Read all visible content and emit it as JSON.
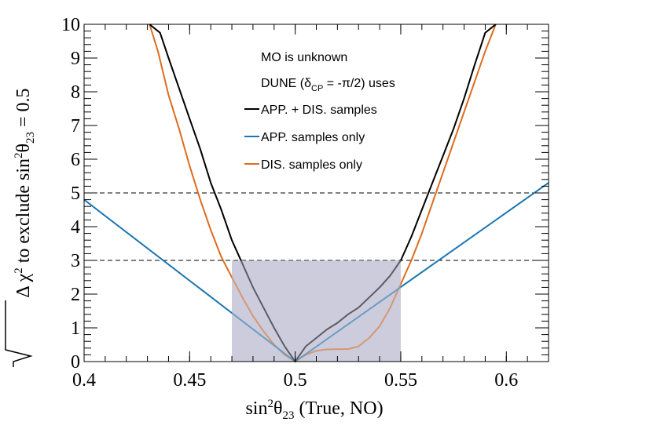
{
  "chart_data": {
    "type": "line",
    "title": "",
    "xlabel": {
      "base": "sin",
      "sup": "2",
      "theta": "θ",
      "sub": "23",
      "rest": " (True, NO)"
    },
    "ylabel": {
      "delta": "Δ χ",
      "sup": "2",
      "text": " to exclude sin",
      "sup2": "2",
      "theta": "θ",
      "sub": "23",
      "tail": " = 0.5"
    },
    "xlim": [
      0.4,
      0.62
    ],
    "ylim": [
      0,
      10
    ],
    "xticks": [
      0.4,
      0.45,
      0.5,
      0.55,
      0.6
    ],
    "xtick_labels": [
      "0.4",
      "0.45",
      "0.5",
      "0.55",
      "0.6"
    ],
    "yticks": [
      0,
      1,
      2,
      3,
      4,
      5,
      6,
      7,
      8,
      9,
      10
    ],
    "ytick_labels": [
      "0",
      "1",
      "2",
      "3",
      "4",
      "5",
      "6",
      "7",
      "8",
      "9",
      "10"
    ],
    "hlines": [
      3,
      5
    ],
    "shaded_region": {
      "x": [
        0.47,
        0.55
      ],
      "y": [
        0,
        3
      ],
      "color": "#cccddc"
    },
    "annotations": [
      {
        "text": "MO is unknown"
      },
      {
        "text_pre": "DUNE (δ",
        "sub": "CP",
        "text_post": " = -π/2) uses"
      }
    ],
    "series": [
      {
        "name": "APP. + DIS. samples",
        "color": "#000000",
        "x": [
          0.431,
          0.433,
          0.436,
          0.44,
          0.445,
          0.45,
          0.455,
          0.46,
          0.465,
          0.47,
          0.475,
          0.48,
          0.485,
          0.49,
          0.495,
          0.5,
          0.505,
          0.51,
          0.515,
          0.52,
          0.525,
          0.53,
          0.535,
          0.54,
          0.545,
          0.55,
          0.555,
          0.56,
          0.565,
          0.57,
          0.575,
          0.58,
          0.585,
          0.59,
          0.595
        ],
        "y": [
          10,
          9.9,
          9.75,
          9.0,
          8.1,
          7.2,
          6.3,
          5.3,
          4.5,
          3.6,
          2.9,
          2.2,
          1.6,
          1.0,
          0.45,
          0.0,
          0.45,
          0.7,
          0.95,
          1.15,
          1.4,
          1.6,
          1.9,
          2.2,
          2.55,
          3.0,
          3.7,
          4.5,
          5.3,
          6.1,
          6.9,
          7.8,
          8.8,
          9.75,
          10
        ]
      },
      {
        "name": "APP. samples only",
        "color": "#1a75b0",
        "x": [
          0.4,
          0.5,
          0.62
        ],
        "y": [
          4.8,
          0.0,
          5.3
        ]
      },
      {
        "name": "DIS. samples only",
        "color": "#dd6c1d",
        "x": [
          0.431,
          0.435,
          0.44,
          0.445,
          0.45,
          0.455,
          0.46,
          0.465,
          0.47,
          0.475,
          0.48,
          0.485,
          0.49,
          0.495,
          0.5,
          0.505,
          0.51,
          0.515,
          0.52,
          0.525,
          0.53,
          0.535,
          0.54,
          0.545,
          0.55,
          0.555,
          0.56,
          0.565,
          0.57,
          0.575,
          0.58,
          0.585,
          0.59,
          0.595
        ],
        "y": [
          10,
          9.2,
          7.9,
          6.9,
          5.8,
          4.8,
          3.9,
          3.1,
          2.5,
          1.9,
          1.35,
          0.9,
          0.5,
          0.2,
          0.0,
          0.2,
          0.32,
          0.36,
          0.37,
          0.37,
          0.45,
          0.7,
          1.05,
          1.6,
          2.3,
          3.0,
          3.8,
          4.7,
          5.6,
          6.5,
          7.4,
          8.3,
          9.2,
          10
        ]
      }
    ],
    "legend": {
      "position": "top-right"
    }
  }
}
